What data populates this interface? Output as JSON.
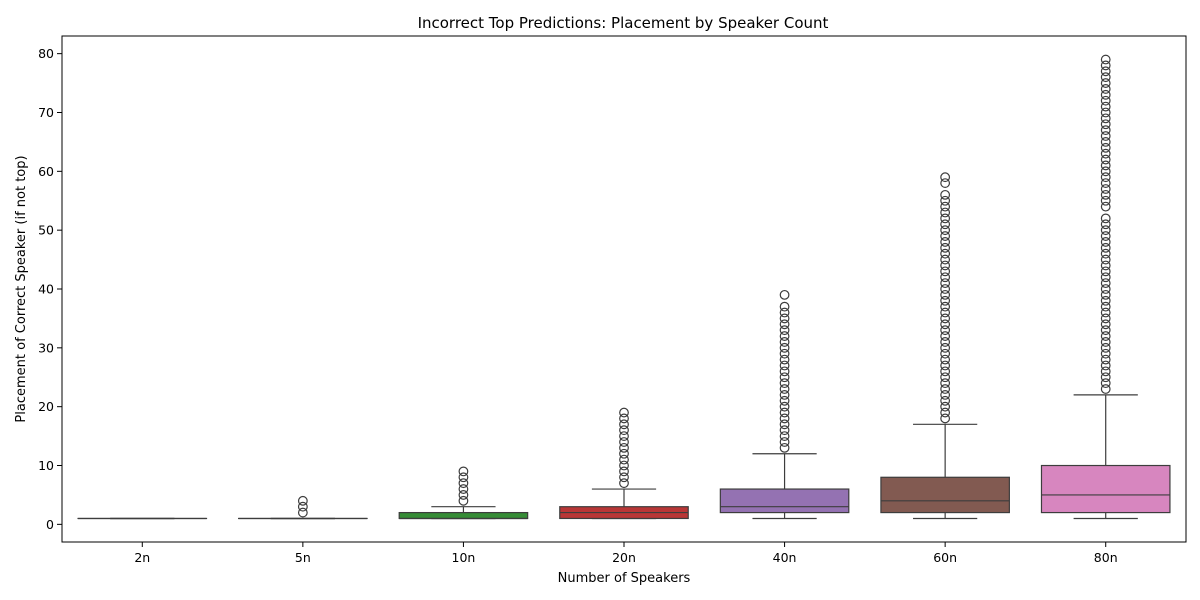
{
  "chart_data": {
    "type": "box",
    "title": "Incorrect Top Predictions: Placement by Speaker Count",
    "xlabel": "Number of Speakers",
    "ylabel": "Placement of Correct Speaker (if not top)",
    "ylim": [
      -3,
      83
    ],
    "yticks": [
      0,
      10,
      20,
      30,
      40,
      50,
      60,
      70,
      80
    ],
    "grid": false,
    "legend": "none",
    "categories": [
      "2n",
      "5n",
      "10n",
      "20n",
      "40n",
      "60n",
      "80n"
    ],
    "colors": [
      "#1f77b4",
      "#ff7f0e",
      "#2ca02c",
      "#d62728",
      "#9467bd",
      "#8c564b",
      "#e377c2"
    ],
    "boxes": [
      {
        "category": "2n",
        "whisker_low": 1,
        "q1": 1,
        "median": 1,
        "q3": 1,
        "whisker_high": 1,
        "outliers": []
      },
      {
        "category": "5n",
        "whisker_low": 1,
        "q1": 1,
        "median": 1,
        "q3": 1,
        "whisker_high": 1,
        "outliers": [
          2,
          3,
          4
        ]
      },
      {
        "category": "10n",
        "whisker_low": 1,
        "q1": 1,
        "median": 1,
        "q3": 2,
        "whisker_high": 3,
        "outliers": [
          4,
          5,
          6,
          7,
          8,
          9
        ]
      },
      {
        "category": "20n",
        "whisker_low": 1,
        "q1": 1,
        "median": 2,
        "q3": 3,
        "whisker_high": 6,
        "outliers": [
          7,
          8,
          9,
          10,
          11,
          12,
          13,
          14,
          15,
          16,
          17,
          18,
          19
        ]
      },
      {
        "category": "40n",
        "whisker_low": 1,
        "q1": 2,
        "median": 3,
        "q3": 6,
        "whisker_high": 12,
        "outliers": [
          13,
          14,
          15,
          16,
          17,
          18,
          19,
          20,
          21,
          22,
          23,
          24,
          25,
          26,
          27,
          28,
          29,
          30,
          31,
          32,
          33,
          34,
          35,
          36,
          37,
          39
        ]
      },
      {
        "category": "60n",
        "whisker_low": 1,
        "q1": 2,
        "median": 4,
        "q3": 8,
        "whisker_high": 17,
        "outliers": [
          18,
          19,
          20,
          21,
          22,
          23,
          24,
          25,
          26,
          27,
          28,
          29,
          30,
          31,
          32,
          33,
          34,
          35,
          36,
          37,
          38,
          39,
          40,
          41,
          42,
          43,
          44,
          45,
          46,
          47,
          48,
          49,
          50,
          51,
          52,
          53,
          54,
          55,
          56,
          58,
          59
        ]
      },
      {
        "category": "80n",
        "whisker_low": 1,
        "q1": 2,
        "median": 5,
        "q3": 10,
        "whisker_high": 22,
        "outliers": [
          23,
          24,
          25,
          26,
          27,
          28,
          29,
          30,
          31,
          32,
          33,
          34,
          35,
          36,
          37,
          38,
          39,
          40,
          41,
          42,
          43,
          44,
          45,
          46,
          47,
          48,
          49,
          50,
          51,
          52,
          54,
          55,
          56,
          57,
          58,
          59,
          60,
          61,
          62,
          63,
          64,
          65,
          66,
          67,
          68,
          69,
          70,
          71,
          72,
          73,
          74,
          75,
          76,
          77,
          78,
          79
        ]
      }
    ]
  }
}
